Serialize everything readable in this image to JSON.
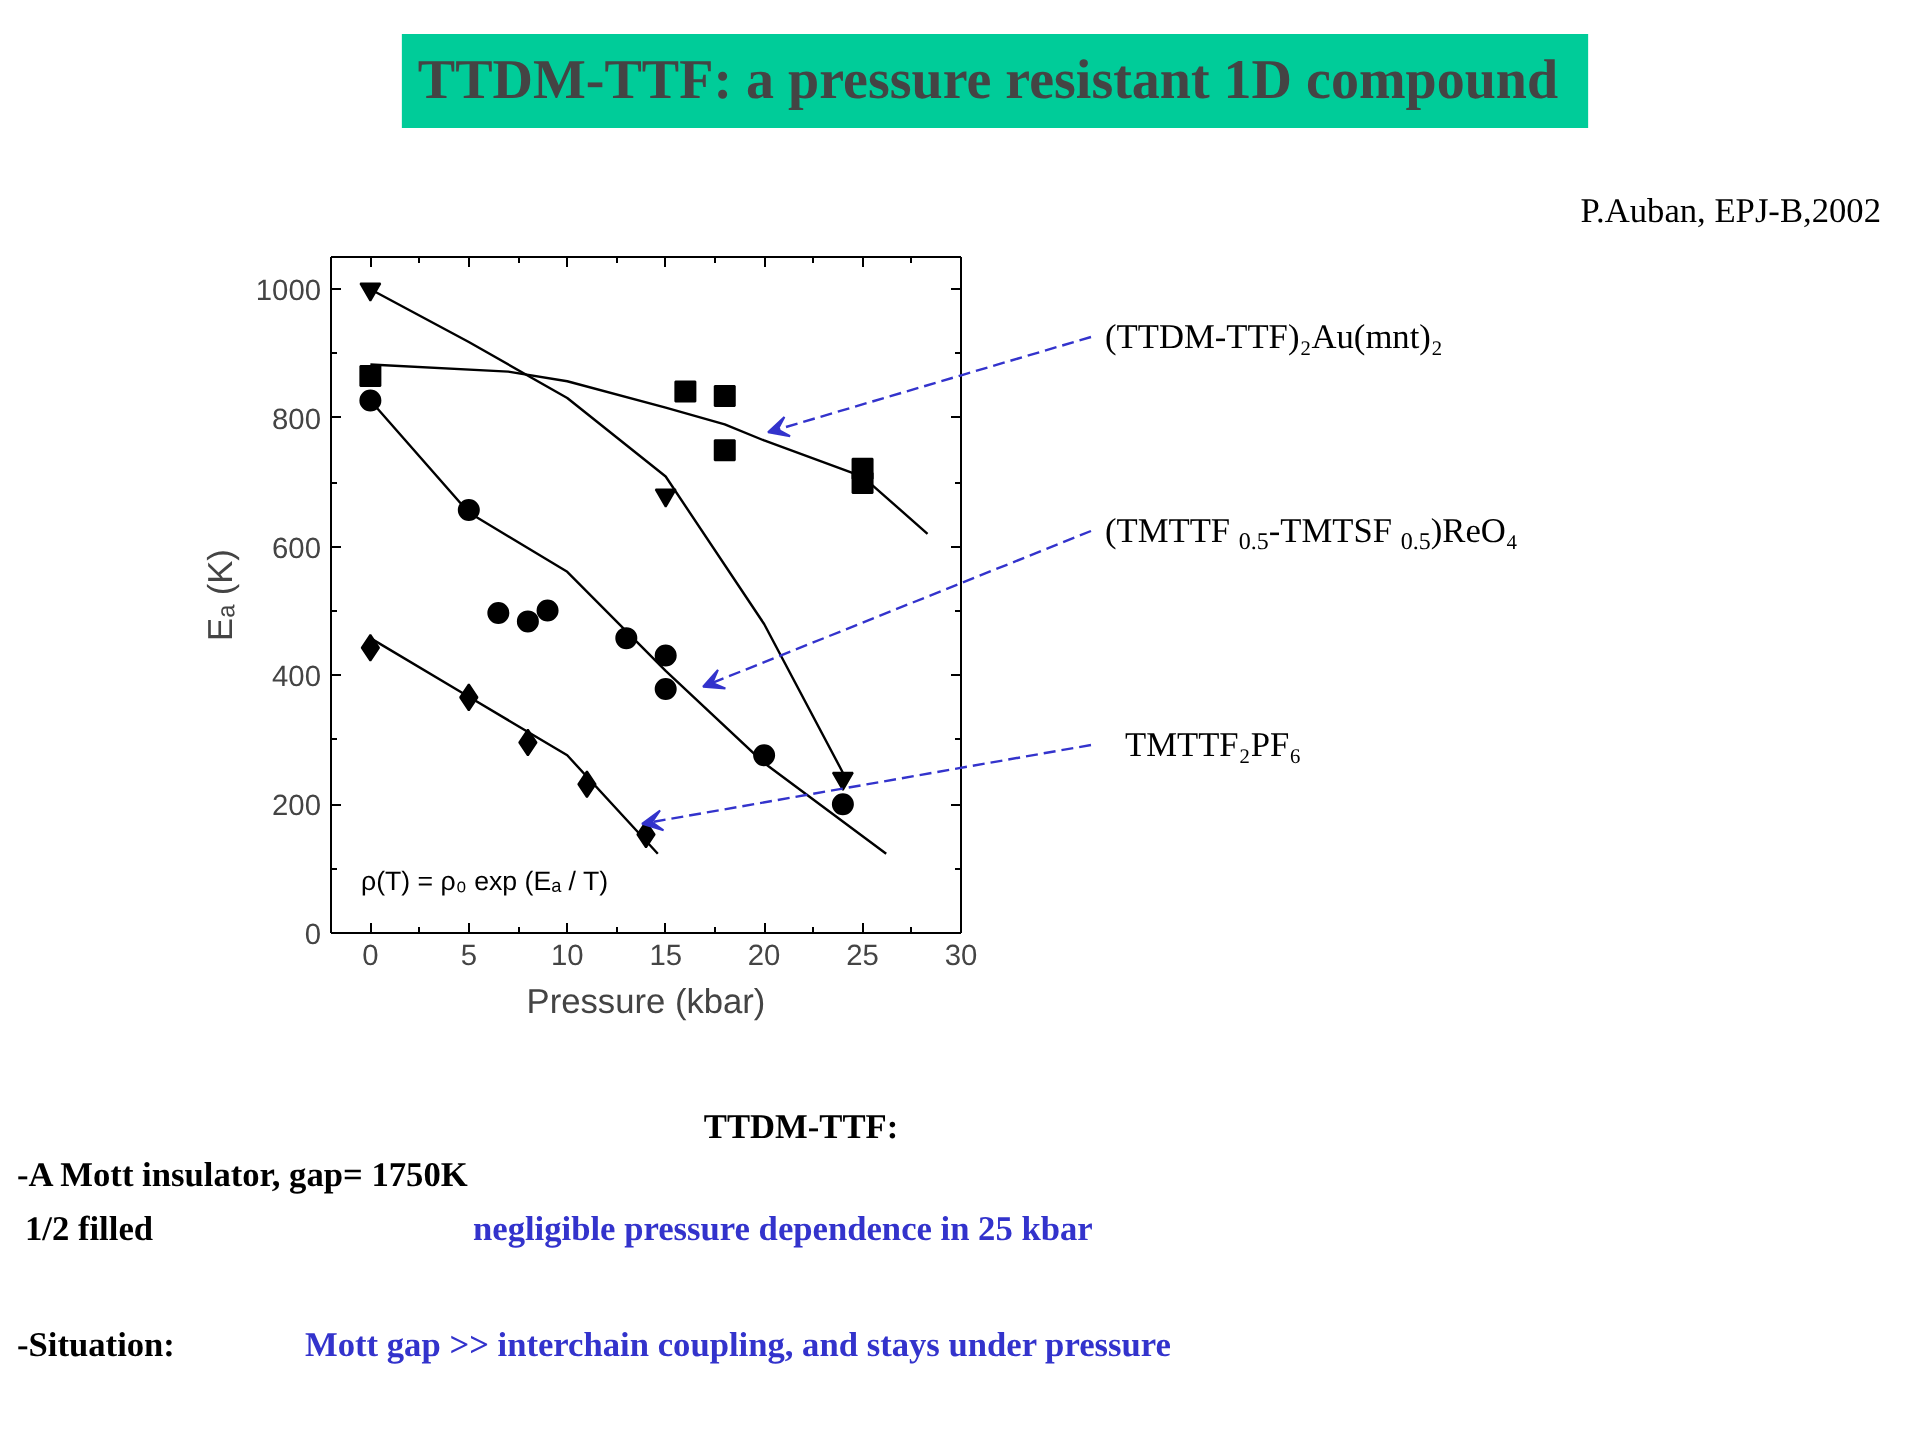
{
  "chart_data": {
    "type": "scatter",
    "title": "TTDM-TTF: a pressure  resistant 1D compound",
    "xlabel": "Pressure (kbar)",
    "ylabel": "Eₐ (K)",
    "xlim": [
      -2,
      30
    ],
    "ylim": [
      0,
      1050
    ],
    "xticks": [
      0,
      5,
      10,
      15,
      20,
      25,
      30
    ],
    "yticks": [
      0,
      200,
      400,
      600,
      800,
      1000
    ],
    "grid": false,
    "series": [
      {
        "name": "(TTDM-TTF)₂Au(mnt)₂",
        "color": "#000000",
        "marker": "square",
        "x": [
          0,
          16,
          18,
          18,
          25,
          25
        ],
        "values": [
          865,
          841,
          834,
          750,
          721,
          699
        ]
      },
      {
        "color": "#000000",
        "marker": "triangle",
        "x": [
          0,
          15,
          24
        ],
        "values": [
          1000,
          680,
          240
        ]
      },
      {
        "name": "(TMTTF $_{0.5}$-TMTSF $_{0.5}$)ReO₄",
        "color": "#000000",
        "marker": "circle",
        "x": [
          0,
          5,
          6.5,
          8,
          9,
          13,
          15,
          15,
          20,
          24
        ],
        "values": [
          827,
          657,
          497,
          484,
          501,
          458,
          431,
          379,
          276,
          200
        ]
      },
      {
        "name": "TMTTF₂PF₆",
        "color": "#000000",
        "marker": "diamond",
        "x": [
          0,
          5,
          8,
          11,
          14
        ],
        "values": [
          443,
          366,
          296,
          231,
          153
        ]
      },
      {
        "type": "line",
        "color": "#000000",
        "x": [
          0,
          7,
          10,
          15,
          18,
          20,
          25,
          28.3
        ],
        "values": [
          883,
          872,
          857,
          816,
          790,
          765,
          709,
          620
        ]
      },
      {
        "type": "line",
        "color": "#000000",
        "x": [
          0,
          5,
          10,
          15,
          20,
          24
        ],
        "values": [
          1000,
          918,
          831,
          709,
          480,
          249
        ]
      },
      {
        "type": "line",
        "color": "#000000",
        "x": [
          0,
          5,
          10,
          15,
          20,
          26.2
        ],
        "values": [
          827,
          653,
          561,
          407,
          264,
          123
        ]
      },
      {
        "type": "line",
        "color": "#000000",
        "x": [
          0,
          5,
          10,
          14.6
        ],
        "values": [
          458,
          367,
          276,
          123
        ]
      }
    ],
    "annotations": [
      "P.Auban, EPJ-B,2002",
      "ρ(T) = ρ₀ exp (Eₐ / T)",
      "TTDM-TTF:",
      "-A Mott insulator,   gap= 1750K",
      "1/2 filled",
      "negligible  pressure dependence in 25 kbar",
      "-Situation:",
      "Mott gap   >>  interchain coupling, and stays under pressure"
    ]
  }
}
